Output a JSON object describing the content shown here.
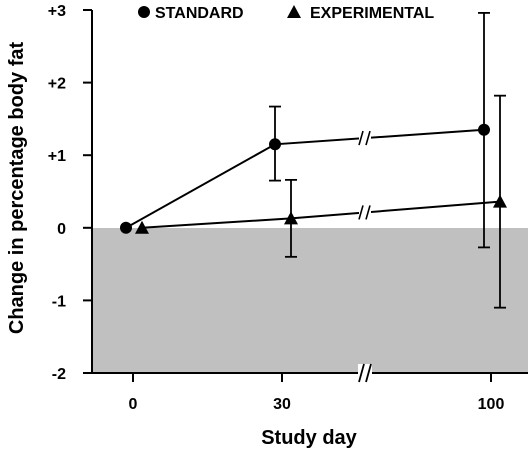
{
  "chart_data": {
    "type": "line",
    "title": "",
    "xlabel": "Study day",
    "ylabel": "Change in percentage body fat",
    "x_categories": [
      "0",
      "30",
      "100"
    ],
    "y_ticks": [
      "+3",
      "+2",
      "+1",
      "0",
      "-1",
      "-2"
    ],
    "ylim": [
      -2,
      3
    ],
    "x_axis_break": true,
    "shaded_region": {
      "from": -2,
      "to": 0,
      "color": "#c0c0c0"
    },
    "legend_position": "top",
    "series": [
      {
        "name": "STANDARD",
        "marker": "circle",
        "points": [
          {
            "x": "0",
            "y": 0.0,
            "err_low": 0.0,
            "err_high": 0.0
          },
          {
            "x": "30",
            "y": 1.15,
            "err_low": 0.65,
            "err_high": 1.67
          },
          {
            "x": "100",
            "y": 1.35,
            "err_low": -0.27,
            "err_high": 2.96
          }
        ]
      },
      {
        "name": "EXPERIMENTAL",
        "marker": "triangle",
        "points": [
          {
            "x": "0",
            "y": 0.0,
            "err_low": 0.0,
            "err_high": 0.0
          },
          {
            "x": "30",
            "y": 0.13,
            "err_low": -0.4,
            "err_high": 0.66
          },
          {
            "x": "100",
            "y": 0.36,
            "err_low": -1.1,
            "err_high": 1.82
          }
        ]
      }
    ]
  }
}
